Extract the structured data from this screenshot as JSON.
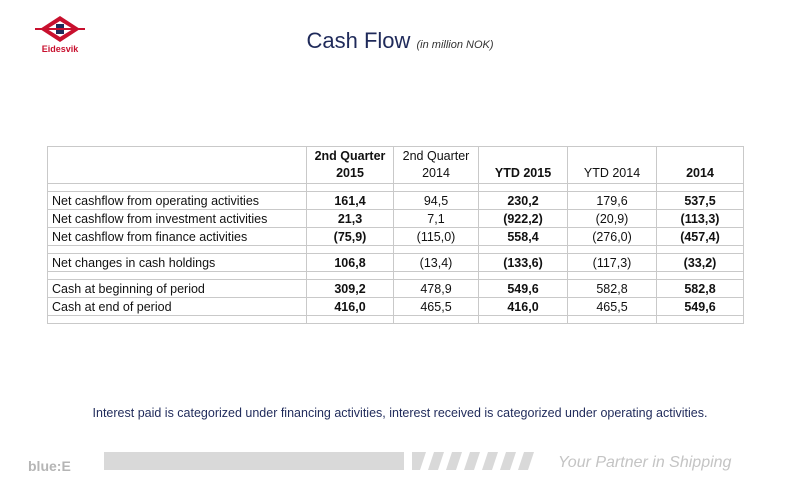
{
  "logo": {
    "text": "Eidesvik"
  },
  "header": {
    "title": "Cash Flow",
    "subtitle": "(in million NOK)"
  },
  "table": {
    "headers": [
      {
        "line1": "",
        "line2": ""
      },
      {
        "line1": "2nd Quarter",
        "line2": "2015"
      },
      {
        "line1": "2nd Quarter",
        "line2": "2014"
      },
      {
        "line1": "",
        "line2": "YTD 2015"
      },
      {
        "line1": "",
        "line2": "YTD 2014"
      },
      {
        "line1": "",
        "line2": "2014"
      }
    ],
    "rows": [
      {
        "label": "Net cashflow from operating activities",
        "values": [
          "161,4",
          "94,5",
          "230,2",
          "179,6",
          "537,5"
        ]
      },
      {
        "label": "Net cashflow from investment activities",
        "values": [
          "21,3",
          "7,1",
          "(922,2)",
          "(20,9)",
          "(113,3)"
        ]
      },
      {
        "label": "Net cashflow from finance activities",
        "values": [
          "(75,9)",
          "(115,0)",
          "558,4",
          "(276,0)",
          "(457,4)"
        ]
      },
      {
        "label": "Net changes in cash holdings",
        "values": [
          "106,8",
          "(13,4)",
          "(133,6)",
          "(117,3)",
          "(33,2)"
        ]
      },
      {
        "label": "Cash at beginning of period",
        "values": [
          "309,2",
          "478,9",
          "549,6",
          "582,8",
          "582,8"
        ]
      },
      {
        "label": "Cash at end of period",
        "values": [
          "416,0",
          "465,5",
          "416,0",
          "465,5",
          "549,6"
        ]
      }
    ]
  },
  "note": "Interest paid is categorized under financing activities, interest received is categorized under operating activities.",
  "footer": {
    "brand": "blue:E",
    "tagline": "Your Partner in Shipping"
  },
  "colors": {
    "title": "#1f2a5a",
    "logo": "#c8102e",
    "footer_grey": "#d9d9d9"
  }
}
